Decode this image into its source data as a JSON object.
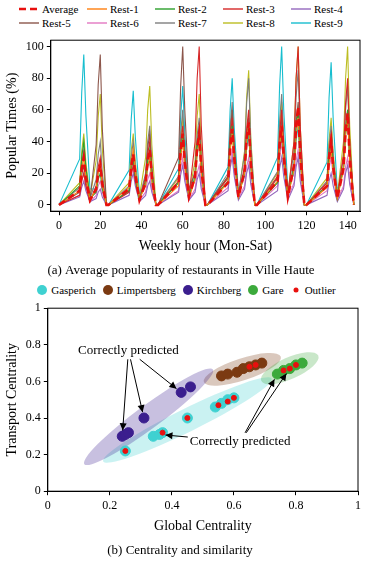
{
  "chart_data": [
    {
      "type": "line",
      "title": "(a) Average popularity of restaurants in Ville Haute",
      "xlabel": "Weekly hour (Mon-Sat)",
      "ylabel": "Popular Times (%)",
      "xlim": [
        -4,
        146
      ],
      "xticks": [
        0,
        20,
        40,
        60,
        80,
        100,
        120,
        140
      ],
      "ylim": [
        -4,
        104
      ],
      "yticks": [
        0,
        20,
        40,
        60,
        80,
        100
      ],
      "grid": false,
      "legend": "top",
      "x": [
        0,
        10,
        11,
        12,
        13,
        15,
        18,
        19,
        20,
        21,
        23,
        24,
        34,
        35,
        36,
        37,
        39,
        42,
        43,
        44,
        45,
        47,
        48,
        58,
        59,
        60,
        61,
        63,
        66,
        67,
        68,
        69,
        71,
        72,
        82,
        83,
        84,
        85,
        87,
        90,
        91,
        92,
        93,
        95,
        96,
        106,
        107,
        108,
        109,
        111,
        114,
        115,
        116,
        117,
        119,
        120,
        130,
        131,
        132,
        133,
        135,
        138,
        139,
        140,
        141,
        143
      ],
      "series": [
        {
          "name": "Average",
          "color": "#e8100e",
          "line_style": "dashed",
          "values": [
            0,
            9,
            23,
            30,
            18,
            3,
            10,
            20,
            25,
            13,
            0,
            0,
            10,
            24,
            32,
            19,
            3,
            14,
            28,
            35,
            18,
            0,
            0,
            14,
            34,
            45,
            27,
            5,
            18,
            36,
            45,
            23,
            0,
            0,
            14,
            36,
            48,
            29,
            5,
            21,
            42,
            52,
            26,
            0,
            0,
            15,
            38,
            50,
            30,
            5,
            25,
            50,
            62,
            31,
            0,
            0,
            12,
            30,
            40,
            24,
            4,
            23,
            46,
            58,
            29,
            0
          ]
        },
        {
          "name": "Rest-1",
          "color": "#ff7f0e",
          "line_style": "solid",
          "values": [
            0,
            9,
            23,
            30,
            18,
            3,
            10,
            20,
            25,
            13,
            0,
            0,
            11,
            26,
            35,
            21,
            4,
            12,
            24,
            30,
            15,
            0,
            0,
            12,
            30,
            40,
            24,
            4,
            16,
            32,
            40,
            20,
            0,
            0,
            14,
            34,
            45,
            27,
            5,
            20,
            40,
            50,
            25,
            0,
            0,
            15,
            38,
            50,
            30,
            5,
            22,
            44,
            55,
            28,
            0,
            0,
            11,
            26,
            35,
            21,
            4,
            22,
            44,
            55,
            28,
            0
          ]
        },
        {
          "name": "Rest-2",
          "color": "#2ca02c",
          "line_style": "solid",
          "values": [
            0,
            12,
            30,
            40,
            24,
            4,
            8,
            16,
            20,
            10,
            0,
            0,
            9,
            23,
            30,
            18,
            3,
            14,
            28,
            35,
            18,
            0,
            0,
            14,
            34,
            45,
            27,
            5,
            18,
            36,
            45,
            23,
            0,
            0,
            15,
            38,
            50,
            30,
            5,
            20,
            40,
            50,
            25,
            0,
            0,
            14,
            34,
            45,
            27,
            5,
            24,
            48,
            60,
            30,
            0,
            0,
            12,
            30,
            40,
            24,
            4,
            24,
            48,
            60,
            30,
            0
          ]
        },
        {
          "name": "Rest-3",
          "color": "#d62728",
          "line_style": "solid",
          "values": [
            0,
            6,
            15,
            20,
            12,
            2,
            12,
            24,
            30,
            15,
            0,
            0,
            8,
            19,
            25,
            15,
            3,
            16,
            32,
            40,
            20,
            0,
            0,
            15,
            38,
            50,
            30,
            5,
            40,
            80,
            100,
            50,
            0,
            0,
            17,
            41,
            55,
            33,
            6,
            24,
            48,
            60,
            30,
            0,
            0,
            18,
            45,
            60,
            36,
            6,
            40,
            80,
            100,
            50,
            0,
            0,
            14,
            34,
            45,
            27,
            5,
            32,
            64,
            80,
            40,
            0
          ]
        },
        {
          "name": "Rest-4",
          "color": "#9467bd",
          "line_style": "solid",
          "values": [
            0,
            5,
            11,
            15,
            9,
            2,
            4,
            8,
            10,
            5,
            0,
            0,
            6,
            15,
            20,
            12,
            2,
            6,
            12,
            15,
            8,
            0,
            0,
            8,
            19,
            25,
            15,
            3,
            8,
            16,
            20,
            10,
            0,
            0,
            9,
            23,
            30,
            18,
            3,
            10,
            20,
            25,
            13,
            0,
            0,
            9,
            23,
            30,
            18,
            3,
            12,
            24,
            30,
            15,
            0,
            0,
            6,
            15,
            20,
            12,
            2,
            10,
            20,
            25,
            13,
            0
          ]
        },
        {
          "name": "Rest-5",
          "color": "#8c564b",
          "line_style": "solid",
          "values": [
            0,
            8,
            19,
            25,
            15,
            3,
            38,
            76,
            95,
            48,
            0,
            0,
            9,
            23,
            30,
            18,
            3,
            18,
            36,
            45,
            23,
            0,
            0,
            30,
            75,
            100,
            60,
            10,
            20,
            40,
            50,
            25,
            0,
            0,
            18,
            45,
            60,
            36,
            6,
            22,
            44,
            55,
            28,
            0,
            0,
            17,
            41,
            55,
            33,
            6,
            26,
            52,
            65,
            33,
            0,
            0,
            12,
            30,
            40,
            24,
            4,
            24,
            48,
            60,
            30,
            0
          ]
        },
        {
          "name": "Rest-6",
          "color": "#e377c2",
          "line_style": "solid",
          "values": [
            0,
            6,
            15,
            20,
            12,
            2,
            6,
            12,
            15,
            8,
            0,
            0,
            8,
            19,
            25,
            15,
            3,
            8,
            16,
            20,
            10,
            0,
            0,
            9,
            23,
            30,
            18,
            3,
            10,
            20,
            25,
            13,
            0,
            0,
            11,
            26,
            35,
            21,
            4,
            12,
            24,
            30,
            15,
            0,
            0,
            12,
            30,
            40,
            24,
            4,
            14,
            28,
            35,
            18,
            0,
            0,
            9,
            23,
            30,
            18,
            3,
            12,
            24,
            30,
            15,
            0
          ]
        },
        {
          "name": "Rest-7",
          "color": "#7f7f7f",
          "line_style": "solid",
          "values": [
            0,
            11,
            26,
            35,
            21,
            4,
            16,
            32,
            40,
            20,
            0,
            0,
            12,
            30,
            40,
            24,
            4,
            20,
            40,
            50,
            25,
            0,
            0,
            18,
            45,
            60,
            36,
            6,
            22,
            44,
            55,
            28,
            0,
            0,
            20,
            49,
            65,
            39,
            7,
            32,
            64,
            80,
            40,
            0,
            0,
            21,
            53,
            70,
            42,
            7,
            34,
            68,
            85,
            43,
            0,
            0,
            15,
            38,
            50,
            30,
            5,
            30,
            60,
            75,
            38,
            0
          ]
        },
        {
          "name": "Rest-8",
          "color": "#bcbd22",
          "line_style": "solid",
          "values": [
            0,
            14,
            34,
            45,
            27,
            5,
            28,
            56,
            70,
            35,
            0,
            0,
            14,
            34,
            45,
            27,
            5,
            30,
            60,
            75,
            38,
            0,
            0,
            17,
            41,
            55,
            33,
            6,
            28,
            56,
            70,
            35,
            0,
            0,
            18,
            45,
            60,
            36,
            6,
            34,
            68,
            85,
            43,
            0,
            0,
            20,
            49,
            65,
            39,
            7,
            40,
            80,
            100,
            50,
            0,
            0,
            17,
            41,
            55,
            33,
            6,
            40,
            80,
            100,
            50,
            0
          ]
        },
        {
          "name": "Rest-9",
          "color": "#17becf",
          "line_style": "solid",
          "values": [
            0,
            29,
            71,
            95,
            57,
            10,
            10,
            20,
            25,
            13,
            0,
            0,
            22,
            54,
            72,
            43,
            7,
            12,
            24,
            30,
            15,
            0,
            0,
            23,
            56,
            75,
            45,
            8,
            16,
            32,
            40,
            20,
            0,
            0,
            24,
            60,
            80,
            48,
            8,
            18,
            36,
            45,
            23,
            0,
            0,
            30,
            75,
            100,
            60,
            10,
            20,
            40,
            50,
            25,
            0,
            0,
            27,
            68,
            90,
            54,
            9,
            22,
            44,
            55,
            28,
            0
          ]
        }
      ]
    },
    {
      "type": "scatter",
      "title": "(b) Centrality and similarity",
      "xlabel": "Global Centrality",
      "ylabel": "Transport Centrality",
      "xlim": [
        0,
        1
      ],
      "xticks": [
        0,
        0.2,
        0.4,
        0.6,
        0.8,
        1
      ],
      "ylim": [
        0,
        1
      ],
      "yticks": [
        0,
        0.2,
        0.4,
        0.6,
        0.8,
        1
      ],
      "grid": false,
      "legend": "top",
      "series": [
        {
          "name": "Gasperich",
          "color": "#3fd1d1",
          "marker": "circle",
          "x": [
            0.25,
            0.34,
            0.36,
            0.37,
            0.45,
            0.54,
            0.56,
            0.58,
            0.6
          ],
          "y": [
            0.22,
            0.3,
            0.31,
            0.32,
            0.4,
            0.46,
            0.48,
            0.5,
            0.51
          ]
        },
        {
          "name": "Limpertsberg",
          "color": "#7b3a12",
          "marker": "circle",
          "x": [
            0.56,
            0.58,
            0.61,
            0.63,
            0.65,
            0.67,
            0.69
          ],
          "y": [
            0.63,
            0.64,
            0.65,
            0.67,
            0.68,
            0.69,
            0.7
          ]
        },
        {
          "name": "Kirchberg",
          "color": "#3b1e8e",
          "marker": "circle",
          "x": [
            0.24,
            0.25,
            0.26,
            0.31,
            0.43,
            0.46
          ],
          "y": [
            0.3,
            0.31,
            0.32,
            0.4,
            0.54,
            0.57
          ]
        },
        {
          "name": "Gare",
          "color": "#3caa3c",
          "marker": "circle",
          "x": [
            0.74,
            0.76,
            0.78,
            0.8,
            0.82
          ],
          "y": [
            0.64,
            0.66,
            0.67,
            0.69,
            0.7
          ]
        },
        {
          "name": "Outlier",
          "color": "#e8100e",
          "marker": "dot",
          "x": [
            0.25,
            0.37,
            0.45,
            0.55,
            0.58,
            0.6,
            0.65,
            0.67,
            0.76,
            0.78,
            0.8
          ],
          "y": [
            0.22,
            0.32,
            0.4,
            0.47,
            0.49,
            0.51,
            0.68,
            0.69,
            0.66,
            0.67,
            0.69
          ]
        }
      ],
      "annotations": [
        {
          "text": "Correctly predicted",
          "x": 0.26,
          "y": 0.77,
          "targets": [
            {
              "x": 0.24,
              "y": 0.3
            },
            {
              "x": 0.31,
              "y": 0.4
            },
            {
              "x": 0.43,
              "y": 0.54
            }
          ]
        },
        {
          "text": "Correctly predicted",
          "x": 0.62,
          "y": 0.27,
          "targets": [
            {
              "x": 0.36,
              "y": 0.31
            },
            {
              "x": 0.74,
              "y": 0.64
            },
            {
              "x": 0.78,
              "y": 0.67
            }
          ]
        }
      ]
    }
  ]
}
